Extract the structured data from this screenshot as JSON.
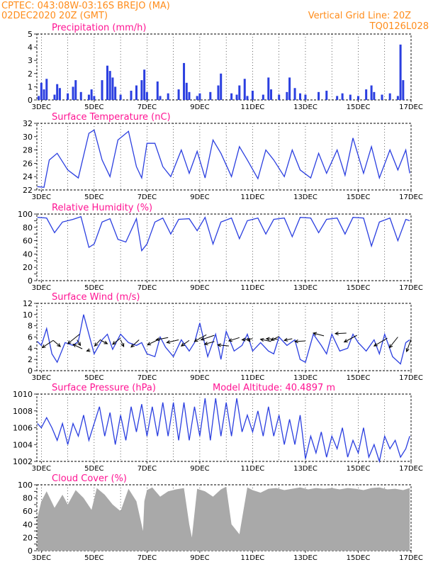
{
  "header": {
    "line1": "CPTEC:   043:08W-03:16S   BREJO (MA)",
    "line2": "02DEC2020 20Z (GMT)",
    "grid_note": "Vertical Grid Line: 20Z",
    "run_code": "TQ0126L028"
  },
  "colors": {
    "header": "#ff8c1a",
    "title": "#ff1493",
    "line": "#2b3fe0",
    "cloud": "#a9a9a9",
    "axis": "#000000"
  },
  "chart_data": [
    {
      "type": "bar",
      "title": "Precipitation  (mm/h)",
      "ylim": [
        0,
        5
      ],
      "yticks": [
        0,
        1,
        2,
        3,
        4,
        5
      ],
      "x_tick_labels": [
        "3DEC",
        "5DEC",
        "7DEC",
        "9DEC",
        "11DEC",
        "13DEC",
        "15DEC",
        "17DEC"
      ],
      "x_tick_days": [
        3,
        5,
        7,
        9,
        11,
        13,
        15,
        17
      ],
      "x_range_days": [
        2.83,
        17.0
      ],
      "series": [
        {
          "x": [
            2.9,
            3.0,
            3.1,
            3.2,
            3.5,
            3.6,
            3.7,
            4.0,
            4.2,
            4.3,
            4.5,
            4.8,
            4.9,
            5.0,
            5.3,
            5.5,
            5.6,
            5.7,
            5.8,
            6.0,
            6.4,
            6.6,
            6.8,
            6.9,
            7.0,
            7.4,
            7.5,
            7.8,
            8.2,
            8.4,
            8.5,
            8.6,
            8.9,
            9.0,
            9.4,
            9.7,
            9.8,
            10.2,
            10.4,
            10.5,
            10.7,
            10.8,
            11.0,
            11.4,
            11.6,
            11.7,
            12.0,
            12.3,
            12.4,
            12.6,
            12.8,
            13.0,
            13.5,
            13.8,
            14.2,
            14.4,
            14.7,
            15.0,
            15.3,
            15.5,
            15.6,
            15.9,
            16.2,
            16.5,
            16.6,
            16.7
          ],
          "values": [
            0.3,
            1.3,
            0.8,
            1.6,
            0.4,
            1.2,
            0.9,
            0.5,
            1.0,
            1.5,
            0.6,
            0.4,
            0.8,
            0.3,
            1.5,
            2.6,
            2.2,
            1.7,
            1.0,
            0.4,
            0.7,
            1.1,
            1.5,
            2.3,
            0.6,
            1.4,
            0.3,
            0.5,
            0.8,
            2.8,
            1.3,
            0.6,
            0.3,
            0.5,
            0.6,
            1.1,
            2.0,
            0.5,
            0.4,
            1.1,
            1.6,
            0.3,
            0.7,
            0.4,
            1.7,
            0.8,
            0.4,
            0.6,
            1.7,
            0.9,
            0.5,
            0.4,
            0.6,
            0.7,
            0.3,
            0.5,
            0.4,
            0.3,
            0.8,
            1.1,
            0.6,
            0.4,
            0.5,
            0.3,
            4.2,
            1.5
          ]
        }
      ]
    },
    {
      "type": "line",
      "title": "Surface Temperature  (nC)",
      "ylim": [
        22,
        32
      ],
      "yticks": [
        22,
        24,
        26,
        28,
        30,
        32
      ],
      "x_tick_labels": [
        "3DEC",
        "5DEC",
        "7DEC",
        "9DEC",
        "11DEC",
        "13DEC",
        "15DEC",
        "17DEC"
      ],
      "x_tick_days": [
        3,
        5,
        7,
        9,
        11,
        13,
        15,
        17
      ],
      "x_range_days": [
        2.83,
        17.0
      ],
      "series": [
        {
          "x": [
            2.85,
            3.1,
            3.3,
            3.6,
            4.0,
            4.4,
            4.8,
            5.0,
            5.3,
            5.6,
            5.9,
            6.3,
            6.6,
            6.8,
            7.0,
            7.3,
            7.6,
            7.9,
            8.3,
            8.6,
            8.9,
            9.2,
            9.5,
            9.8,
            10.2,
            10.5,
            10.8,
            11.2,
            11.5,
            11.8,
            12.2,
            12.5,
            12.8,
            13.2,
            13.5,
            13.8,
            14.2,
            14.5,
            14.8,
            15.2,
            15.5,
            15.8,
            16.2,
            16.5,
            16.8,
            16.95
          ],
          "values": [
            22.5,
            22.4,
            26.5,
            27.5,
            25.0,
            23.8,
            30.5,
            31.0,
            26.5,
            24.0,
            29.5,
            30.8,
            25.5,
            23.8,
            29.0,
            29.0,
            25.5,
            24.0,
            28.0,
            24.5,
            27.8,
            23.8,
            29.5,
            27.5,
            24.0,
            28.5,
            26.5,
            23.7,
            28.0,
            26.5,
            24.0,
            28.0,
            25.0,
            23.8,
            27.5,
            24.5,
            28.0,
            24.2,
            29.8,
            24.5,
            28.5,
            23.8,
            28.0,
            25.0,
            28.0,
            24.5
          ]
        }
      ]
    },
    {
      "type": "line",
      "title": "Relative Humidity  (%)",
      "ylim": [
        0,
        100
      ],
      "yticks": [
        0,
        10,
        20,
        30,
        40,
        50,
        60,
        70,
        80,
        90,
        100
      ],
      "ytick_labels": [
        0,
        20,
        40,
        60,
        80,
        100
      ],
      "x_tick_labels": [
        "3DEC",
        "5DEC",
        "7DEC",
        "9DEC",
        "11DEC",
        "13DEC",
        "15DEC",
        "17DEC"
      ],
      "x_tick_days": [
        3,
        5,
        7,
        9,
        11,
        13,
        15,
        17
      ],
      "x_range_days": [
        2.83,
        17.0
      ],
      "series": [
        {
          "x": [
            2.85,
            3.2,
            3.5,
            3.8,
            4.2,
            4.5,
            4.8,
            5.0,
            5.3,
            5.6,
            5.9,
            6.2,
            6.6,
            6.8,
            7.0,
            7.3,
            7.6,
            7.9,
            8.2,
            8.6,
            8.9,
            9.2,
            9.5,
            9.8,
            10.2,
            10.5,
            10.8,
            11.2,
            11.5,
            11.8,
            12.2,
            12.5,
            12.8,
            13.2,
            13.5,
            13.8,
            14.2,
            14.5,
            14.8,
            15.2,
            15.5,
            15.8,
            16.2,
            16.5,
            16.8,
            16.95
          ],
          "values": [
            95,
            94,
            72,
            88,
            92,
            96,
            50,
            55,
            88,
            93,
            62,
            58,
            93,
            45,
            55,
            88,
            94,
            70,
            92,
            93,
            75,
            95,
            55,
            88,
            94,
            63,
            90,
            94,
            70,
            92,
            94,
            66,
            95,
            94,
            72,
            92,
            94,
            70,
            95,
            94,
            52,
            88,
            94,
            60,
            92,
            90
          ]
        }
      ]
    },
    {
      "type": "line",
      "title": "Surface Wind  (m/s)",
      "ylim": [
        0,
        12
      ],
      "yticks": [
        0,
        2,
        4,
        6,
        8,
        10,
        12
      ],
      "x_tick_labels": [
        "3DEC",
        "5DEC",
        "7DEC",
        "9DEC",
        "11DEC",
        "13DEC",
        "15DEC",
        "17DEC"
      ],
      "x_tick_days": [
        3,
        5,
        7,
        9,
        11,
        13,
        15,
        17
      ],
      "x_range_days": [
        2.83,
        17.0
      ],
      "series": [
        {
          "x": [
            2.85,
            3.0,
            3.2,
            3.4,
            3.6,
            3.9,
            4.2,
            4.4,
            4.6,
            4.8,
            5.0,
            5.3,
            5.5,
            5.7,
            6.0,
            6.3,
            6.6,
            6.8,
            7.0,
            7.3,
            7.5,
            7.7,
            8.0,
            8.3,
            8.6,
            8.8,
            9.0,
            9.3,
            9.6,
            9.8,
            10.0,
            10.3,
            10.6,
            10.8,
            11.0,
            11.3,
            11.6,
            11.8,
            12.0,
            12.3,
            12.6,
            12.8,
            13.0,
            13.3,
            13.6,
            13.8,
            14.0,
            14.3,
            14.6,
            14.8,
            15.0,
            15.3,
            15.6,
            15.8,
            16.0,
            16.3,
            16.6,
            16.8,
            16.95
          ],
          "values": [
            5.2,
            4.5,
            7.5,
            3.0,
            1.5,
            5.0,
            4.5,
            5.2,
            10.0,
            6.5,
            3.0,
            5.5,
            6.5,
            3.8,
            6.5,
            5.0,
            4.5,
            5.0,
            3.0,
            2.5,
            6.0,
            4.2,
            2.5,
            5.5,
            3.5,
            5.0,
            8.5,
            2.5,
            6.5,
            2.0,
            7.0,
            3.5,
            4.5,
            6.5,
            3.5,
            5.0,
            3.5,
            3.0,
            6.0,
            4.5,
            5.5,
            2.0,
            1.5,
            6.5,
            4.5,
            3.0,
            6.5,
            3.5,
            4.0,
            6.5,
            5.0,
            3.5,
            5.5,
            3.0,
            6.5,
            2.5,
            1.2,
            5.0,
            5.5
          ]
        }
      ],
      "arrow_days": [
        3.03,
        3.72,
        4.0,
        4.2,
        4.48,
        4.72,
        5.02,
        5.5,
        5.7,
        6.12,
        6.4,
        7.02,
        7.35,
        7.75,
        8.3,
        8.8,
        9.05,
        9.18,
        9.68,
        10.1,
        10.6,
        10.9,
        11.3,
        11.52,
        11.7,
        12.2,
        12.6,
        13.3,
        14.13,
        14.47,
        15.6,
        16.18,
        16.83
      ],
      "arrow_tip_days": [
        3.45,
        3.45,
        4.45,
        4.55,
        4.35,
        4.85,
        5.25,
        5.25,
        6.0,
        6.0,
        6.7,
        7.5,
        7.8,
        8.2,
        8.6,
        9.25,
        9.55,
        9.55,
        10.1,
        10.5,
        11.0,
        10.8,
        11.7,
        11.95,
        12.0,
        12.5,
        13.0,
        13.7,
        14.55,
        14.95,
        16.1,
        16.5,
        17.0
      ],
      "arrow_speed": [
        4.1,
        4.3,
        4.8,
        4.7,
        4.5,
        3.5,
        4.4,
        4.8,
        4.7,
        4.3,
        4.2,
        4.6,
        5.5,
        5.0,
        4.4,
        5.2,
        5.5,
        4.7,
        4.6,
        5.3,
        5.5,
        5.2,
        5.6,
        5.7,
        5.4,
        5.4,
        5.2,
        6.7,
        6.6,
        5.1,
        4.4,
        4.1,
        3.4
      ],
      "arrow_tip_speed": [
        5.4,
        5.4,
        6.5,
        3.9,
        5.5,
        3.7,
        5.6,
        5.4,
        5.8,
        5.5,
        5.5,
        5.7,
        5.9,
        5.5,
        5.4,
        6.4,
        6.3,
        5.2,
        4.4,
        5.9,
        5.7,
        5.8,
        5.2,
        5.6,
        6.1,
        5.7,
        5.3,
        6.2,
        6.7,
        6.3,
        5.8,
        6.0,
        5.6
      ]
    },
    {
      "type": "line",
      "title": "Surface Pressure  (hPa)",
      "annotation": "Model Altitude: 40.4897  m",
      "ylim": [
        1002,
        1010
      ],
      "yticks": [
        1002,
        1004,
        1006,
        1008,
        1010
      ],
      "x_tick_labels": [
        "3DEC",
        "5DEC",
        "7DEC",
        "9DEC",
        "11DEC",
        "13DEC",
        "15DEC",
        "17DEC"
      ],
      "x_tick_days": [
        3,
        5,
        7,
        9,
        11,
        13,
        15,
        17
      ],
      "x_range_days": [
        2.83,
        17.0
      ],
      "series": [
        {
          "x": [
            2.85,
            3.0,
            3.2,
            3.4,
            3.6,
            3.8,
            4.0,
            4.2,
            4.4,
            4.6,
            4.8,
            5.0,
            5.2,
            5.4,
            5.6,
            5.8,
            6.0,
            6.2,
            6.4,
            6.6,
            6.8,
            7.0,
            7.2,
            7.4,
            7.6,
            7.8,
            8.0,
            8.2,
            8.4,
            8.6,
            8.8,
            9.0,
            9.2,
            9.4,
            9.6,
            9.8,
            10.0,
            10.2,
            10.4,
            10.6,
            10.8,
            11.0,
            11.2,
            11.4,
            11.6,
            11.8,
            12.0,
            12.2,
            12.4,
            12.6,
            12.8,
            13.0,
            13.2,
            13.4,
            13.6,
            13.8,
            14.0,
            14.2,
            14.4,
            14.6,
            14.8,
            15.0,
            15.2,
            15.4,
            15.6,
            15.8,
            16.0,
            16.2,
            16.4,
            16.6,
            16.8,
            16.95
          ],
          "values": [
            1006.5,
            1006.0,
            1007.2,
            1006.0,
            1004.5,
            1006.5,
            1004.0,
            1006.5,
            1005.0,
            1007.5,
            1004.5,
            1006.5,
            1008.5,
            1005.0,
            1007.8,
            1004.0,
            1007.5,
            1004.5,
            1008.5,
            1005.5,
            1008.8,
            1005.0,
            1008.5,
            1005.0,
            1009.0,
            1005.0,
            1009.0,
            1004.5,
            1009.0,
            1004.5,
            1008.5,
            1005.0,
            1009.5,
            1004.5,
            1009.5,
            1005.0,
            1009.0,
            1005.0,
            1009.5,
            1005.5,
            1007.5,
            1005.5,
            1008.0,
            1005.0,
            1008.5,
            1005.0,
            1007.5,
            1004.0,
            1007.0,
            1004.0,
            1007.5,
            1002.3,
            1005.0,
            1003.0,
            1005.5,
            1002.5,
            1005.0,
            1003.5,
            1006.0,
            1002.5,
            1004.5,
            1003.0,
            1006.0,
            1002.5,
            1004.0,
            1002.0,
            1005.0,
            1003.5,
            1004.5,
            1002.5,
            1003.5,
            1005.0
          ]
        }
      ]
    },
    {
      "type": "area",
      "title": "Cloud Cover  (%)",
      "ylim": [
        0,
        100
      ],
      "yticks": [
        0,
        10,
        20,
        30,
        40,
        50,
        60,
        70,
        80,
        90,
        100
      ],
      "ytick_labels": [
        0,
        20,
        40,
        60,
        80,
        100
      ],
      "x_tick_labels": [
        "3DEC",
        "5DEC",
        "7DEC",
        "9DEC",
        "11DEC",
        "13DEC",
        "15DEC",
        "17DEC"
      ],
      "x_tick_days": [
        3,
        5,
        7,
        9,
        11,
        13,
        15,
        17
      ],
      "x_range_days": [
        2.83,
        17.0
      ],
      "series": [
        {
          "x": [
            2.85,
            3.0,
            3.2,
            3.5,
            3.8,
            4.0,
            4.3,
            4.6,
            4.9,
            5.1,
            5.4,
            5.7,
            6.0,
            6.3,
            6.6,
            6.85,
            6.9,
            7.0,
            7.2,
            7.5,
            7.8,
            8.1,
            8.4,
            8.6,
            8.7,
            8.9,
            9.2,
            9.5,
            9.8,
            10.0,
            10.2,
            10.5,
            10.8,
            11.0,
            11.3,
            11.6,
            11.9,
            12.2,
            12.5,
            12.8,
            13.1,
            13.4,
            13.7,
            14.0,
            14.3,
            14.6,
            14.9,
            15.2,
            15.5,
            15.8,
            16.1,
            16.4,
            16.7,
            16.95
          ],
          "values": [
            50,
            75,
            90,
            65,
            85,
            70,
            92,
            80,
            62,
            95,
            85,
            70,
            60,
            94,
            75,
            30,
            75,
            92,
            96,
            82,
            90,
            93,
            95,
            40,
            20,
            94,
            90,
            82,
            93,
            97,
            40,
            25,
            96,
            92,
            88,
            94,
            95,
            92,
            94,
            96,
            93,
            95,
            94,
            95,
            93,
            95,
            94,
            92,
            95,
            96,
            93,
            94,
            92,
            95
          ]
        }
      ]
    }
  ]
}
